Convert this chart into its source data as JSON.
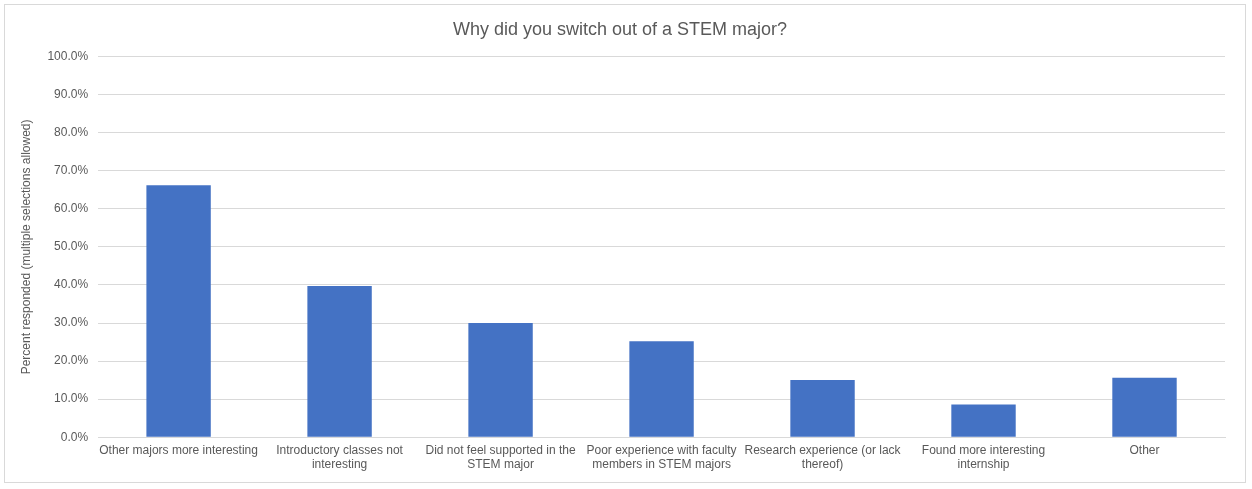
{
  "chart_data": {
    "type": "bar",
    "title": "Why did you switch out of a STEM major?",
    "ylabel": "Percent responded (multiple selections allowed)",
    "categories": [
      "Other majors more interesting",
      "Introductory classes not interesting",
      "Did not feel supported in the STEM major",
      "Poor experience with faculty members in STEM majors",
      "Research experience (or lack thereof)",
      "Found more interesting internship",
      "Other"
    ],
    "values": [
      66.2,
      39.7,
      30.0,
      25.2,
      15.0,
      8.6,
      15.6
    ],
    "color": "#4472c4",
    "ylim": [
      0,
      100
    ],
    "yticks": [
      {
        "value": 0,
        "label": "0.0%"
      },
      {
        "value": 10,
        "label": "10.0%"
      },
      {
        "value": 20,
        "label": "20.0%"
      },
      {
        "value": 30,
        "label": "30.0%"
      },
      {
        "value": 40,
        "label": "40.0%"
      },
      {
        "value": 50,
        "label": "50.0%"
      },
      {
        "value": 60,
        "label": "60.0%"
      },
      {
        "value": 70,
        "label": "70.0%"
      },
      {
        "value": 80,
        "label": "80.0%"
      },
      {
        "value": 90,
        "label": "90.0%"
      },
      {
        "value": 100,
        "label": "100.0%"
      }
    ],
    "grid": "y",
    "legend": false
  }
}
